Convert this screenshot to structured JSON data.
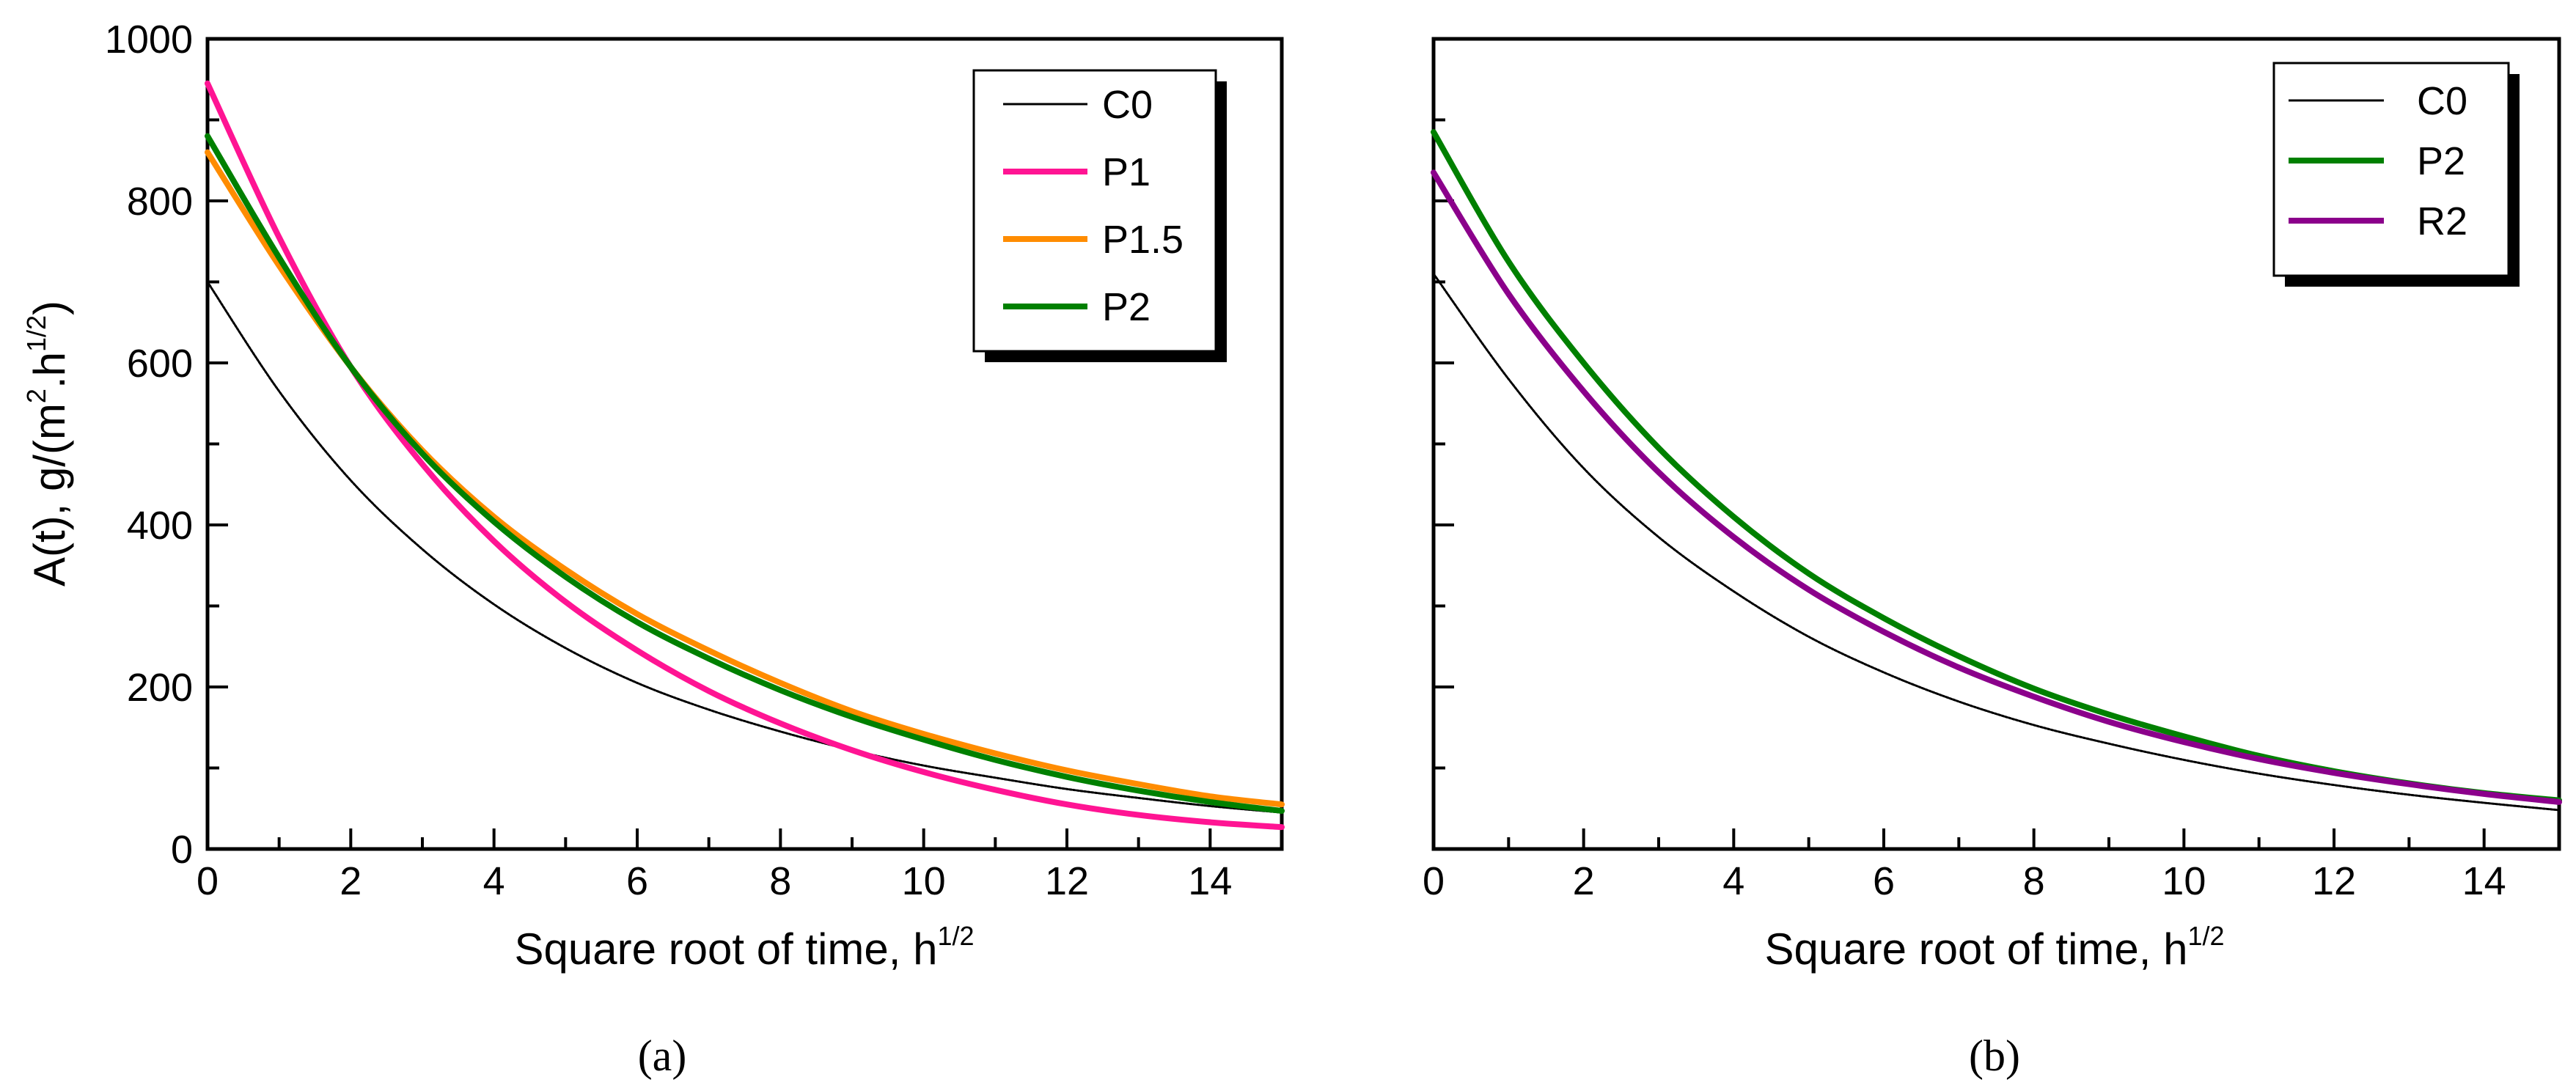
{
  "chart_data": [
    {
      "type": "line",
      "panel_label": "(a)",
      "xlabel": "Square root of time, h",
      "xlabel_sup": "1/2",
      "ylabel": "A(t), g/(m",
      "ylabel_sup1": "2",
      "ylabel_mid": ".h",
      "ylabel_sup2": "1/2",
      "ylabel_end": ")",
      "xlim": [
        0,
        15
      ],
      "ylim": [
        0,
        1000
      ],
      "xticks": [
        "0",
        "2",
        "4",
        "6",
        "8",
        "10",
        "12",
        "14"
      ],
      "yticks": [
        "0",
        "200",
        "400",
        "600",
        "800",
        "1000"
      ],
      "legend_position": "top-right",
      "series": [
        {
          "name": "C0",
          "color": "#000000",
          "x": [
            0,
            1,
            2,
            3,
            4,
            5,
            6,
            7,
            8,
            9,
            10,
            11,
            12,
            13,
            14,
            15
          ],
          "values": [
            700,
            565,
            455,
            370,
            302,
            248,
            205,
            172,
            145,
            122,
            103,
            88,
            74,
            63,
            53,
            45
          ]
        },
        {
          "name": "P1",
          "color": "#ff1493",
          "x": [
            0,
            1,
            2,
            3,
            4,
            5,
            6,
            7,
            8,
            9,
            10,
            11,
            12,
            13,
            14,
            15
          ],
          "values": [
            945,
            755,
            595,
            475,
            380,
            305,
            245,
            195,
            155,
            122,
            95,
            73,
            55,
            42,
            33,
            27
          ]
        },
        {
          "name": "P1.5",
          "color": "#ff8c00",
          "x": [
            0,
            1,
            2,
            3,
            4,
            5,
            6,
            7,
            8,
            9,
            10,
            11,
            12,
            13,
            14,
            15
          ],
          "values": [
            860,
            720,
            595,
            492,
            410,
            345,
            290,
            245,
            205,
            170,
            142,
            118,
            97,
            80,
            65,
            55
          ]
        },
        {
          "name": "P2",
          "color": "#008000",
          "x": [
            0,
            1,
            2,
            3,
            4,
            5,
            6,
            7,
            8,
            9,
            10,
            11,
            12,
            13,
            14,
            15
          ],
          "values": [
            880,
            730,
            595,
            488,
            404,
            336,
            280,
            235,
            196,
            163,
            135,
            110,
            89,
            72,
            58,
            47
          ]
        }
      ]
    },
    {
      "type": "line",
      "panel_label": "(b)",
      "xlabel": "Square root of time, h",
      "xlabel_sup": "1/2",
      "xlim": [
        0,
        15
      ],
      "ylim": [
        0,
        1000
      ],
      "xticks": [
        "0",
        "2",
        "4",
        "6",
        "8",
        "10",
        "12",
        "14"
      ],
      "legend_position": "top-right",
      "series": [
        {
          "name": "C0",
          "color": "#000000",
          "x": [
            0,
            1,
            2,
            3,
            4,
            5,
            6,
            7,
            8,
            9,
            10,
            11,
            12,
            13,
            14,
            15
          ],
          "values": [
            710,
            580,
            470,
            385,
            318,
            262,
            218,
            182,
            153,
            130,
            110,
            93,
            79,
            67,
            57,
            48
          ]
        },
        {
          "name": "P2",
          "color": "#008000",
          "x": [
            0,
            1,
            2,
            3,
            4,
            5,
            6,
            7,
            8,
            9,
            10,
            11,
            12,
            13,
            14,
            15
          ],
          "values": [
            885,
            725,
            600,
            495,
            410,
            340,
            285,
            238,
            198,
            166,
            139,
            115,
            96,
            81,
            69,
            60
          ]
        },
        {
          "name": "R2",
          "color": "#8b008b",
          "x": [
            0,
            1,
            2,
            3,
            4,
            5,
            6,
            7,
            8,
            9,
            10,
            11,
            12,
            13,
            14,
            15
          ],
          "values": [
            835,
            685,
            565,
            465,
            385,
            320,
            268,
            224,
            188,
            157,
            132,
            111,
            94,
            80,
            68,
            58
          ]
        }
      ]
    }
  ]
}
